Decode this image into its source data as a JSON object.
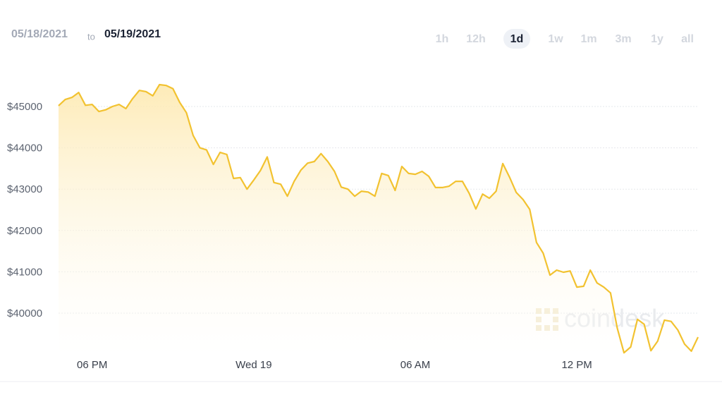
{
  "chart_data": {
    "type": "line",
    "date_from": "05/18/2021",
    "date_joiner": "to",
    "date_to": "05/19/2021",
    "ranges": [
      "1h",
      "12h",
      "1d",
      "1w",
      "1m",
      "3m",
      "1y",
      "all"
    ],
    "selected_range": "1d",
    "watermark": "coindesk",
    "color": "#f2c230",
    "grid": true,
    "values": [
      45020,
      45170,
      45220,
      45340,
      45030,
      45050,
      44880,
      44920,
      45000,
      45050,
      44950,
      45190,
      45390,
      45360,
      45260,
      45530,
      45510,
      45430,
      45100,
      44850,
      44300,
      44000,
      43950,
      43600,
      43890,
      43840,
      43260,
      43280,
      43000,
      43220,
      43450,
      43780,
      43160,
      43120,
      42830,
      43190,
      43460,
      43630,
      43670,
      43860,
      43670,
      43430,
      43050,
      43000,
      42830,
      42950,
      42930,
      42830,
      43380,
      43330,
      42970,
      43550,
      43380,
      43360,
      43430,
      43310,
      43040,
      43040,
      43070,
      43190,
      43190,
      42900,
      42520,
      42880,
      42780,
      42950,
      43620,
      43290,
      42920,
      42750,
      42510,
      41710,
      41450,
      40920,
      41040,
      40990,
      41020,
      40630,
      40650,
      41040,
      40730,
      40630,
      40490,
      39640,
      39040,
      39180,
      39850,
      39730,
      39090,
      39320,
      39830,
      39800,
      39590,
      39250,
      39080,
      39420
    ],
    "xlim": [
      0,
      95
    ],
    "xticks": [
      {
        "value": 5,
        "label": "06 PM"
      },
      {
        "value": 29,
        "label": "Wed 19"
      },
      {
        "value": 53,
        "label": "06 AM"
      },
      {
        "value": 77,
        "label": "12 PM"
      }
    ],
    "ylim": [
      38950,
      45900
    ],
    "yticks": [
      {
        "value": 40000,
        "label": "$40000"
      },
      {
        "value": 41000,
        "label": "$41000"
      },
      {
        "value": 42000,
        "label": "$42000"
      },
      {
        "value": 43000,
        "label": "$43000"
      },
      {
        "value": 44000,
        "label": "$44000"
      },
      {
        "value": 45000,
        "label": "$45000"
      }
    ]
  }
}
